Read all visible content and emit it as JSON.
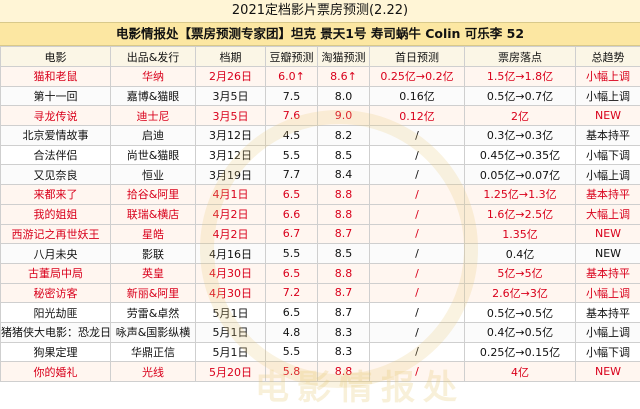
{
  "title": "2021定档影片票房预测(2.22)",
  "subtitle": "电影情报处【票房预测专家团】坦克 景天1号 寿司蜗牛 Colin 可乐李 52",
  "headers": [
    "电影",
    "出品&发行",
    "档期",
    "豆瓣预测",
    "淘猫预测",
    "首日预测",
    "票房落点",
    "总趋势"
  ],
  "rows": [
    {
      "hot": true,
      "cells": [
        "猫和老鼠",
        "华纳",
        "2月26日",
        "6.0↑",
        "8.6↑",
        "0.25亿→0.2亿",
        "1.5亿→1.8亿",
        "小幅上调"
      ]
    },
    {
      "hot": false,
      "cells": [
        "第十一回",
        "嘉博&猫眼",
        "3月5日",
        "7.5",
        "8.0",
        "0.16亿",
        "0.5亿→0.7亿",
        "小幅上调"
      ]
    },
    {
      "hot": true,
      "cells": [
        "寻龙传说",
        "迪士尼",
        "3月5日",
        "7.6",
        "9.0",
        "0.12亿",
        "2亿",
        "NEW"
      ]
    },
    {
      "hot": false,
      "cells": [
        "北京爱情故事",
        "启迪",
        "3月12日",
        "4.5",
        "8.2",
        "/",
        "0.3亿→0.3亿",
        "基本持平"
      ]
    },
    {
      "hot": false,
      "cells": [
        "合法伴侣",
        "尚世&猫眼",
        "3月12日",
        "5.5",
        "8.5",
        "/",
        "0.45亿→0.35亿",
        "小幅下调"
      ]
    },
    {
      "hot": false,
      "cells": [
        "又见奈良",
        "恒业",
        "3月19日",
        "7.7",
        "8.4",
        "/",
        "0.05亿→0.07亿",
        "小幅上调"
      ]
    },
    {
      "hot": true,
      "cells": [
        "来都来了",
        "拾谷&阿里",
        "4月1日",
        "6.5",
        "8.8",
        "/",
        "1.25亿→1.3亿",
        "基本持平"
      ]
    },
    {
      "hot": true,
      "cells": [
        "我的姐姐",
        "联瑞&横店",
        "4月2日",
        "6.6",
        "8.8",
        "/",
        "1.6亿→2.5亿",
        "大幅上调"
      ]
    },
    {
      "hot": true,
      "cells": [
        "西游记之再世妖王",
        "星皓",
        "4月2日",
        "6.7",
        "8.7",
        "/",
        "1.35亿",
        "NEW"
      ]
    },
    {
      "hot": false,
      "cells": [
        "八月未央",
        "影联",
        "4月16日",
        "5.5",
        "8.5",
        "/",
        "0.4亿",
        "NEW"
      ]
    },
    {
      "hot": true,
      "cells": [
        "古董局中局",
        "英皇",
        "4月30日",
        "6.5",
        "8.8",
        "/",
        "5亿→5亿",
        "基本持平"
      ]
    },
    {
      "hot": true,
      "cells": [
        "秘密访客",
        "新丽&阿里",
        "4月30日",
        "7.2",
        "8.7",
        "/",
        "2.6亿→3亿",
        "小幅上调"
      ]
    },
    {
      "hot": false,
      "cells": [
        "阳光劫匪",
        "劳雷&卓然",
        "5月1日",
        "6.5",
        "8.7",
        "/",
        "0.5亿→0.5亿",
        "基本持平"
      ]
    },
    {
      "hot": false,
      "cells": [
        "猪猪侠大电影：恐龙日记",
        "咏声&国影纵横",
        "5月1日",
        "4.8",
        "8.3",
        "/",
        "0.4亿→0.5亿",
        "小幅上调"
      ]
    },
    {
      "hot": false,
      "cells": [
        "狗果定理",
        "华鼎正信",
        "5月1日",
        "5.5",
        "8.3",
        "/",
        "0.25亿→0.15亿",
        "小幅下调"
      ]
    },
    {
      "hot": true,
      "cells": [
        "你的婚礼",
        "光线",
        "5月20日",
        "5.8",
        "8.8",
        "/",
        "4亿",
        "NEW"
      ]
    }
  ]
}
